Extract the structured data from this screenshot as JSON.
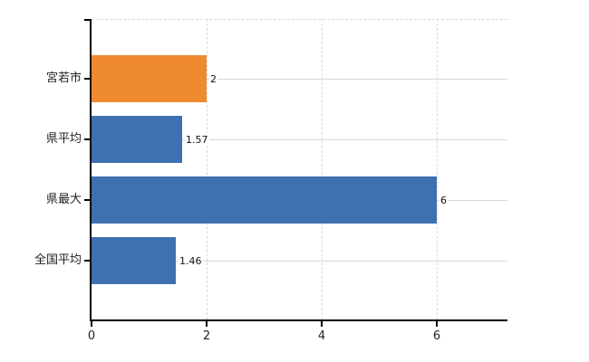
{
  "chart_data": {
    "type": "bar",
    "orientation": "horizontal",
    "title": "",
    "categories": [
      "宮若市",
      "県平均",
      "県最大",
      "全国平均"
    ],
    "values": [
      2,
      1.57,
      6,
      1.46
    ],
    "value_labels": [
      "2",
      "1.57",
      "6",
      "1.46"
    ],
    "x_ticks": [
      0,
      2,
      4,
      6
    ],
    "x_tick_labels": [
      "0",
      "2",
      "4",
      "6"
    ],
    "xlim": [
      0,
      7.2
    ],
    "grid": true,
    "legend": false,
    "bar_colors": [
      "#EF8A31",
      "#3E70B2",
      "#3E70B2",
      "#3E70B2"
    ],
    "highlight_index": 0,
    "colors": {
      "highlight_bar": "#EF8A31",
      "default_bar": "#3E70B2",
      "gridline": "#D9D9D9",
      "axis": "#000000",
      "text": "#222222"
    }
  }
}
